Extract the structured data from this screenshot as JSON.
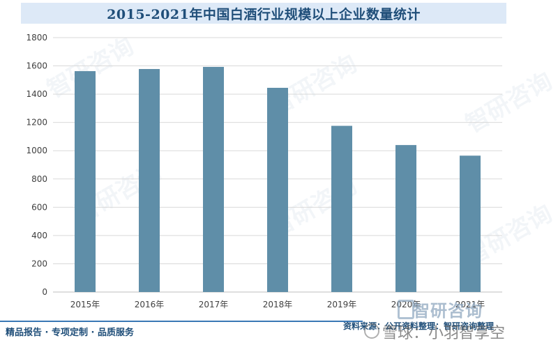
{
  "title": "2015-2021年中国白酒行业规模以上企业数量统计",
  "chart_data": {
    "type": "bar",
    "categories": [
      "2015年",
      "2016年",
      "2017年",
      "2018年",
      "2019年",
      "2020年",
      "2021年"
    ],
    "values": [
      1563,
      1578,
      1593,
      1445,
      1176,
      1040,
      965
    ],
    "ylim": [
      0,
      1800
    ],
    "yticks": [
      0,
      200,
      400,
      600,
      800,
      1000,
      1200,
      1400,
      1600,
      1800
    ],
    "grid": true,
    "bar_color": "#5f8ea8",
    "grid_color": "#d9d9d9"
  },
  "footer": {
    "left": "精品报告 · 专项定制 · 品质服务",
    "source": "资料来源：公开资料整理：智研咨询整理"
  },
  "brand": "智研咨询",
  "watermark_text": "智研咨询",
  "overlay": "雪球：小羽智享空"
}
